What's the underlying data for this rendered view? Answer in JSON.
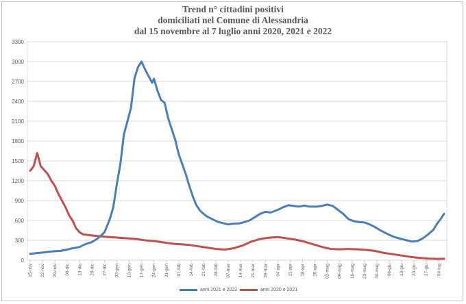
{
  "chart_data": {
    "type": "line",
    "title_lines": [
      "Trend n° cittadini positivi",
      "domiciliati nel Comune di Alessandria",
      "dal 15 novembre al 7 luglio anni 2020, 2021 e 2022"
    ],
    "ylim": [
      0,
      3300
    ],
    "yticks": [
      0,
      300,
      600,
      900,
      1200,
      1500,
      1800,
      2100,
      2400,
      2700,
      3000,
      3300
    ],
    "grid": "horizontal",
    "legend_position": "bottom",
    "x_tick_labels": [
      "15-nov",
      "22-nov",
      "29-nov",
      "06-dic",
      "13-dic",
      "20-dic",
      "27-dic",
      "03-gen",
      "10-gen",
      "17-gen",
      "24-gen",
      "31-gen",
      "07-feb",
      "14-feb",
      "21-feb",
      "28-feb",
      "07-mar",
      "14-mar",
      "21-mar",
      "28-mar",
      "04-apr",
      "11-apr",
      "18-apr",
      "25-apr",
      "02-mag",
      "09-mag",
      "16-mag",
      "23-mag",
      "30-mag",
      "06-giu",
      "13-giu",
      "20-giu",
      "27-giu",
      "04-lug"
    ],
    "x_day_range": [
      0,
      234
    ],
    "series": [
      {
        "name": "anni 2021 e 2022",
        "color": "#4a7ebb",
        "points": [
          [
            0,
            95
          ],
          [
            3,
            105
          ],
          [
            7,
            115
          ],
          [
            10,
            125
          ],
          [
            14,
            135
          ],
          [
            17,
            140
          ],
          [
            21,
            160
          ],
          [
            24,
            180
          ],
          [
            28,
            200
          ],
          [
            31,
            240
          ],
          [
            35,
            275
          ],
          [
            38,
            325
          ],
          [
            42,
            420
          ],
          [
            45,
            620
          ],
          [
            47,
            800
          ],
          [
            49,
            1150
          ],
          [
            51,
            1450
          ],
          [
            53,
            1900
          ],
          [
            55,
            2100
          ],
          [
            57,
            2300
          ],
          [
            59,
            2750
          ],
          [
            61,
            2920
          ],
          [
            63,
            3000
          ],
          [
            65,
            2880
          ],
          [
            67,
            2780
          ],
          [
            69,
            2680
          ],
          [
            70,
            2740
          ],
          [
            72,
            2560
          ],
          [
            74,
            2420
          ],
          [
            76,
            2380
          ],
          [
            78,
            2150
          ],
          [
            80,
            1980
          ],
          [
            82,
            1820
          ],
          [
            84,
            1600
          ],
          [
            86,
            1450
          ],
          [
            88,
            1300
          ],
          [
            90,
            1120
          ],
          [
            92,
            960
          ],
          [
            94,
            830
          ],
          [
            96,
            750
          ],
          [
            98,
            700
          ],
          [
            100,
            660
          ],
          [
            103,
            620
          ],
          [
            106,
            580
          ],
          [
            109,
            560
          ],
          [
            112,
            540
          ],
          [
            115,
            550
          ],
          [
            118,
            555
          ],
          [
            121,
            575
          ],
          [
            124,
            600
          ],
          [
            127,
            650
          ],
          [
            130,
            700
          ],
          [
            133,
            730
          ],
          [
            136,
            720
          ],
          [
            140,
            760
          ],
          [
            143,
            800
          ],
          [
            146,
            830
          ],
          [
            149,
            820
          ],
          [
            152,
            810
          ],
          [
            155,
            825
          ],
          [
            158,
            810
          ],
          [
            162,
            810
          ],
          [
            165,
            820
          ],
          [
            168,
            840
          ],
          [
            171,
            820
          ],
          [
            174,
            760
          ],
          [
            177,
            700
          ],
          [
            180,
            620
          ],
          [
            183,
            590
          ],
          [
            186,
            575
          ],
          [
            189,
            570
          ],
          [
            192,
            540
          ],
          [
            195,
            500
          ],
          [
            198,
            450
          ],
          [
            201,
            410
          ],
          [
            204,
            370
          ],
          [
            207,
            340
          ],
          [
            210,
            320
          ],
          [
            213,
            300
          ],
          [
            216,
            280
          ],
          [
            219,
            290
          ],
          [
            222,
            330
          ],
          [
            225,
            390
          ],
          [
            228,
            460
          ],
          [
            230,
            550
          ],
          [
            232,
            620
          ],
          [
            234,
            700
          ]
        ]
      },
      {
        "name": "anni 2020 e 2021",
        "color": "#c0504d",
        "points": [
          [
            0,
            1350
          ],
          [
            2,
            1420
          ],
          [
            4,
            1620
          ],
          [
            6,
            1420
          ],
          [
            8,
            1360
          ],
          [
            10,
            1300
          ],
          [
            12,
            1200
          ],
          [
            14,
            1120
          ],
          [
            16,
            1000
          ],
          [
            18,
            900
          ],
          [
            20,
            800
          ],
          [
            22,
            680
          ],
          [
            24,
            600
          ],
          [
            26,
            480
          ],
          [
            28,
            420
          ],
          [
            30,
            390
          ],
          [
            33,
            380
          ],
          [
            36,
            370
          ],
          [
            40,
            360
          ],
          [
            45,
            350
          ],
          [
            50,
            340
          ],
          [
            55,
            330
          ],
          [
            60,
            320
          ],
          [
            65,
            300
          ],
          [
            70,
            290
          ],
          [
            75,
            270
          ],
          [
            80,
            250
          ],
          [
            85,
            240
          ],
          [
            90,
            230
          ],
          [
            95,
            210
          ],
          [
            100,
            190
          ],
          [
            105,
            170
          ],
          [
            110,
            160
          ],
          [
            115,
            180
          ],
          [
            120,
            220
          ],
          [
            125,
            280
          ],
          [
            130,
            320
          ],
          [
            135,
            340
          ],
          [
            140,
            350
          ],
          [
            145,
            330
          ],
          [
            150,
            310
          ],
          [
            155,
            280
          ],
          [
            160,
            240
          ],
          [
            165,
            200
          ],
          [
            170,
            170
          ],
          [
            175,
            165
          ],
          [
            180,
            170
          ],
          [
            185,
            165
          ],
          [
            190,
            155
          ],
          [
            195,
            140
          ],
          [
            200,
            110
          ],
          [
            205,
            90
          ],
          [
            210,
            70
          ],
          [
            215,
            50
          ],
          [
            220,
            35
          ],
          [
            225,
            25
          ],
          [
            230,
            20
          ],
          [
            234,
            22
          ]
        ]
      }
    ]
  }
}
